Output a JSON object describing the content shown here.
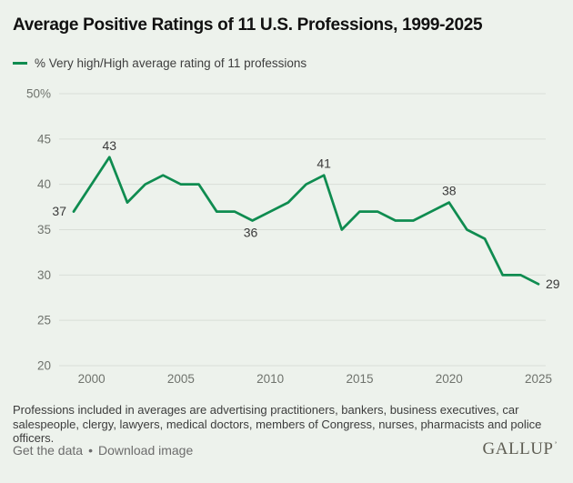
{
  "title": "Average Positive Ratings of 11 U.S. Professions, 1999-2025",
  "legend": {
    "label": "% Very high/High average rating of 11 professions"
  },
  "colors": {
    "background": "#edf2ec",
    "line": "#0f8c50",
    "gridline": "#d9ded7",
    "axis_text": "#6f736d",
    "label_text": "#3a3a3a"
  },
  "chart_data": {
    "type": "line",
    "title": "Average Positive Ratings of 11 U.S. Professions, 1999-2025",
    "xlabel": "",
    "ylabel": "",
    "grid": true,
    "legend_position": "top-left",
    "ylim": [
      20,
      50
    ],
    "yticks": [
      50,
      45,
      40,
      35,
      30,
      25,
      20
    ],
    "ytick_labels": [
      "50%",
      "45",
      "40",
      "35",
      "30",
      "25",
      "20"
    ],
    "xticks": [
      2000,
      2005,
      2010,
      2015,
      2020,
      2025
    ],
    "xtick_labels": [
      "2000",
      "2005",
      "2010",
      "2015",
      "2020",
      "2025"
    ],
    "series": [
      {
        "name": "% Very high/High average rating of 11 professions",
        "color": "#0f8c50",
        "x": [
          1999,
          2000,
          2001,
          2002,
          2003,
          2004,
          2005,
          2006,
          2007,
          2008,
          2009,
          2010,
          2011,
          2012,
          2013,
          2014,
          2015,
          2016,
          2017,
          2018,
          2019,
          2020,
          2021,
          2022,
          2023,
          2024,
          2025
        ],
        "values": [
          37,
          40,
          43,
          38,
          40,
          41,
          40,
          40,
          37,
          37,
          36,
          37,
          38,
          40,
          41,
          35,
          37,
          37,
          36,
          36,
          37,
          38,
          35,
          34,
          30,
          30,
          29
        ]
      }
    ],
    "labeled_points": [
      {
        "year": 1999,
        "value": 37,
        "label": "37",
        "placement": "left"
      },
      {
        "year": 2001,
        "value": 43,
        "label": "43",
        "placement": "above"
      },
      {
        "year": 2009,
        "value": 36,
        "label": "36",
        "placement": "below"
      },
      {
        "year": 2013,
        "value": 41,
        "label": "41",
        "placement": "above"
      },
      {
        "year": 2020,
        "value": 38,
        "label": "38",
        "placement": "above"
      },
      {
        "year": 2025,
        "value": 29,
        "label": "29",
        "placement": "right"
      }
    ]
  },
  "footnote": "Professions included in averages are advertising practitioners, bankers, business executives, car salespeople, clergy, lawyers, medical doctors, members of Congress, nurses, pharmacists and police officers.",
  "footer": {
    "get_data_label": "Get the data",
    "separator": "•",
    "download_label": "Download image",
    "logo": "GALLUP",
    "logo_mark": "ʼ"
  }
}
